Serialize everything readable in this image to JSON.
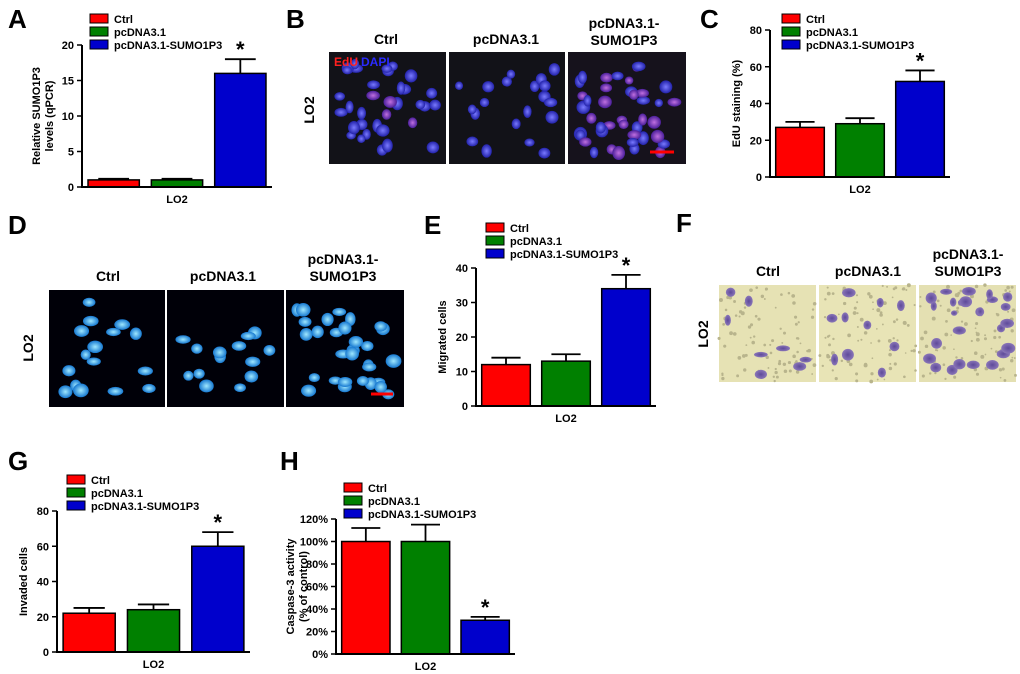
{
  "panels": {
    "B": {
      "letter": "B",
      "side_label": "LO2",
      "columns": [
        "Ctrl",
        "pcDNA3.1",
        "pcDNA3.1-\nSUMO1P3"
      ],
      "stain_label_red": "EdU",
      "stain_label_blue": "DAPI"
    },
    "D": {
      "letter": "D",
      "side_label": "LO2",
      "columns": [
        "Ctrl",
        "pcDNA3.1",
        "pcDNA3.1-\nSUMO1P3"
      ]
    },
    "F": {
      "letter": "F",
      "side_label": "LO2",
      "columns": [
        "Ctrl",
        "pcDNA3.1",
        "pcDNA3.1-\nSUMO1P3"
      ]
    }
  },
  "colors": {
    "ctrl": "#ff0000",
    "pcdna": "#008000",
    "sumo": "#0000cc"
  },
  "chart_data": [
    {
      "id": "A",
      "letter": "A",
      "type": "bar",
      "categories": [
        "Ctrl",
        "pcDNA3.1",
        "pcDNA3.1-SUMO1P3"
      ],
      "values": [
        1.0,
        1.0,
        16.0
      ],
      "errors": [
        0.15,
        0.15,
        2.0
      ],
      "significant": [
        false,
        false,
        true
      ],
      "ylabel": "Relative SUMO1P3\nlevels (qPCR)",
      "xlabel": "LO2",
      "ylim": [
        0,
        20
      ],
      "yticks": [
        0,
        5,
        10,
        15,
        20
      ],
      "legend": [
        "Ctrl",
        "pcDNA3.1",
        "pcDNA3.1-SUMO1P3"
      ],
      "legend_position": "top-left"
    },
    {
      "id": "C",
      "letter": "C",
      "type": "bar",
      "categories": [
        "Ctrl",
        "pcDNA3.1",
        "pcDNA3.1-SUMO1P3"
      ],
      "values": [
        27,
        29,
        52
      ],
      "errors": [
        3,
        3,
        6
      ],
      "significant": [
        false,
        false,
        true
      ],
      "ylabel": "EdU staining (%)",
      "xlabel": "LO2",
      "ylim": [
        0,
        80
      ],
      "yticks": [
        0,
        20,
        40,
        60,
        80
      ],
      "legend": [
        "Ctrl",
        "pcDNA3.1",
        "pcDNA3.1-SUMO1P3"
      ],
      "legend_position": "top-left"
    },
    {
      "id": "E",
      "letter": "E",
      "type": "bar",
      "categories": [
        "Ctrl",
        "pcDNA3.1",
        "pcDNA3.1-SUMO1P3"
      ],
      "values": [
        12,
        13,
        34
      ],
      "errors": [
        2,
        2,
        4
      ],
      "significant": [
        false,
        false,
        true
      ],
      "ylabel": "Migrated cells",
      "xlabel": "LO2",
      "ylim": [
        0,
        40
      ],
      "yticks": [
        0,
        10,
        20,
        30,
        40
      ],
      "legend": [
        "Ctrl",
        "pcDNA3.1",
        "pcDNA3.1-SUMO1P3"
      ],
      "legend_position": "top-left"
    },
    {
      "id": "G",
      "letter": "G",
      "type": "bar",
      "categories": [
        "Ctrl",
        "pcDNA3.1",
        "pcDNA3.1-SUMO1P3"
      ],
      "values": [
        22,
        24,
        60
      ],
      "errors": [
        3,
        3,
        8
      ],
      "significant": [
        false,
        false,
        true
      ],
      "ylabel": "Invaded cells",
      "xlabel": "LO2",
      "ylim": [
        0,
        80
      ],
      "yticks": [
        0,
        20,
        40,
        60,
        80
      ],
      "legend": [
        "Ctrl",
        "pcDNA3.1",
        "pcDNA3.1-SUMO1P3"
      ],
      "legend_position": "top-left"
    },
    {
      "id": "H",
      "letter": "H",
      "type": "bar",
      "categories": [
        "Ctrl",
        "pcDNA3.1",
        "pcDNA3.1-SUMO1P3"
      ],
      "values": [
        100,
        100,
        30
      ],
      "errors": [
        12,
        15,
        3
      ],
      "significant": [
        false,
        false,
        true
      ],
      "ylabel": "Caspase-3 activity\n(% of control)",
      "xlabel": "LO2",
      "ylim": [
        0,
        120
      ],
      "yticks": [
        0,
        20,
        40,
        60,
        80,
        100,
        120
      ],
      "yticklabels": [
        "0%",
        "20%",
        "40%",
        "60%",
        "80%",
        "100%",
        "120%"
      ],
      "legend": [
        "Ctrl",
        "pcDNA3.1",
        "pcDNA3.1-SUMO1P3"
      ],
      "legend_position": "top-left"
    }
  ]
}
